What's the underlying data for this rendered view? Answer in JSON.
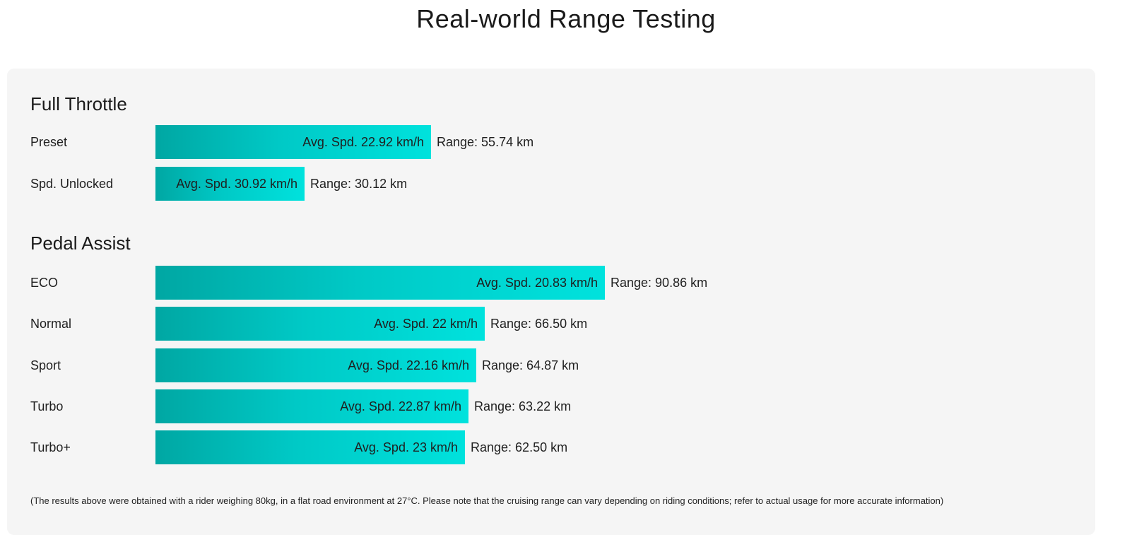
{
  "page": {
    "title": "Real-world Range Testing",
    "footnote": "(The results above were obtained with a rider weighing 80kg, in a flat road environment at 27°C. Please note that the cruising range can vary depending on riding conditions; refer to actual usage for more accurate information)"
  },
  "colors": {
    "bar_start": "#00a7a3",
    "bar_end": "#00e2dd",
    "panel_background": "#f5f5f5"
  },
  "chart_data": {
    "type": "bar",
    "orientation": "horizontal",
    "value_field": "range_km",
    "xlim": [
      0,
      130
    ],
    "groups": [
      {
        "title": "Full Throttle",
        "rows": [
          {
            "label": "Preset",
            "speed_text": "Avg. Spd. 22.92 km/h",
            "range_text": "Range: 55.74 km",
            "range_km": 55.74
          },
          {
            "label": "Spd. Unlocked",
            "speed_text": "Avg. Spd. 30.92 km/h",
            "range_text": "Range: 30.12 km",
            "range_km": 30.12
          }
        ]
      },
      {
        "title": "Pedal Assist",
        "rows": [
          {
            "label": "ECO",
            "speed_text": "Avg. Spd. 20.83 km/h",
            "range_text": "Range: 90.86 km",
            "range_km": 90.86
          },
          {
            "label": "Normal",
            "speed_text": "Avg. Spd. 22 km/h",
            "range_text": "Range: 66.50 km",
            "range_km": 66.5
          },
          {
            "label": "Sport",
            "speed_text": "Avg. Spd. 22.16 km/h",
            "range_text": "Range: 64.87 km",
            "range_km": 64.87
          },
          {
            "label": "Turbo",
            "speed_text": "Avg. Spd. 22.87 km/h",
            "range_text": "Range: 63.22 km",
            "range_km": 63.22
          },
          {
            "label": "Turbo+",
            "speed_text": "Avg. Spd. 23 km/h",
            "range_text": "Range: 62.50 km",
            "range_km": 62.5
          }
        ]
      }
    ]
  }
}
